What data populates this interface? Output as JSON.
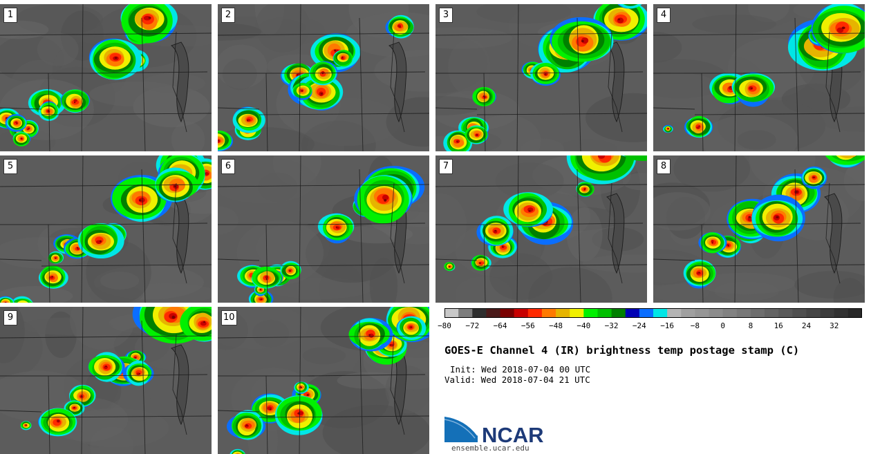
{
  "panels": [
    {
      "label": "1"
    },
    {
      "label": "2"
    },
    {
      "label": "3"
    },
    {
      "label": "4"
    },
    {
      "label": "5"
    },
    {
      "label": "6"
    },
    {
      "label": "7"
    },
    {
      "label": "8"
    },
    {
      "label": "9"
    },
    {
      "label": "10"
    }
  ],
  "colorbar": {
    "colors": [
      "#c8c8c8",
      "#7d7d7d",
      "#2e2e2e",
      "#4a1a1a",
      "#7a0000",
      "#c80000",
      "#ff2a00",
      "#ff7a00",
      "#e6b400",
      "#f0f000",
      "#00f000",
      "#00c000",
      "#008000",
      "#0000b4",
      "#0a6eff",
      "#00e6e6",
      "#b4b4b4",
      "#a0a0a0",
      "#969696",
      "#8c8c8c",
      "#828282",
      "#787878",
      "#6e6e6e",
      "#646464",
      "#5a5a5a",
      "#505050",
      "#464646",
      "#3c3c3c",
      "#323232",
      "#282828"
    ],
    "ticks": [
      "−80",
      "−72",
      "−64",
      "−56",
      "−48",
      "−40",
      "−32",
      "−24",
      "−16",
      "−8",
      "0",
      "8",
      "16",
      "24",
      "32"
    ],
    "min": -80,
    "max": 40
  },
  "title": "GOES-E Channel 4 (IR) brightness temp postage stamp (C)",
  "init": "Init: Wed 2018-07-04 00 UTC",
  "valid": "Valid: Wed 2018-07-04 21 UTC",
  "logo_text": "NCAR",
  "website": "ensemble.ucar.edu"
}
